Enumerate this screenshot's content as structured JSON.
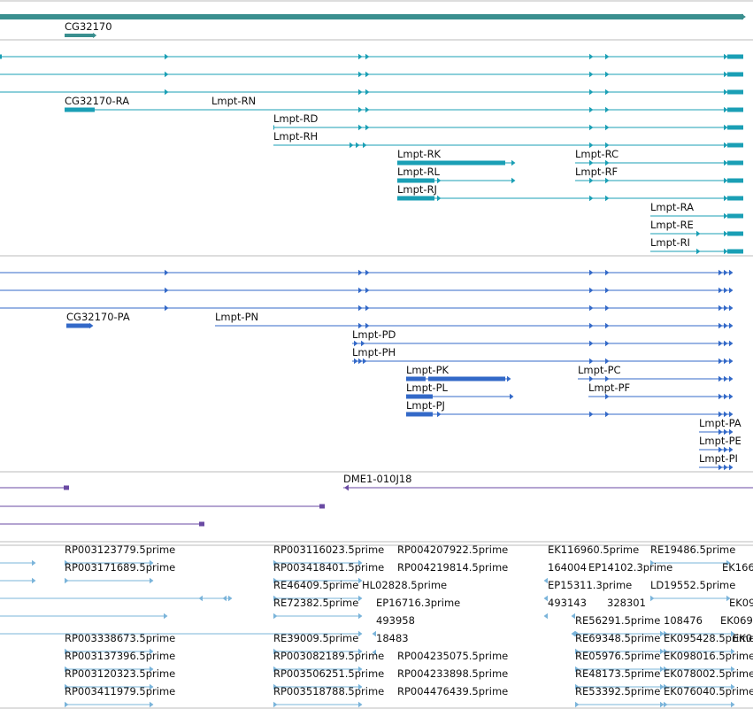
{
  "gene": {
    "label": "CG32170"
  },
  "rna_tracks": [
    {
      "label": "",
      "color": "teal"
    },
    {
      "label": "",
      "color": "teal"
    },
    {
      "label": "",
      "color": "teal"
    },
    {
      "label": "CG32170-RA",
      "color": "teal"
    },
    {
      "label": "Lmpt-RN",
      "color": "teal"
    },
    {
      "label": "Lmpt-RD",
      "color": "teal"
    },
    {
      "label": "Lmpt-RH",
      "color": "teal"
    },
    {
      "label": "Lmpt-RK",
      "color": "teal"
    },
    {
      "label": "Lmpt-RL",
      "color": "teal"
    },
    {
      "label": "Lmpt-RJ",
      "color": "teal"
    },
    {
      "label": "Lmpt-RC",
      "color": "teal"
    },
    {
      "label": "Lmpt-RF",
      "color": "teal"
    },
    {
      "label": "Lmpt-RA",
      "color": "teal"
    },
    {
      "label": "Lmpt-RE",
      "color": "teal"
    },
    {
      "label": "Lmpt-RI",
      "color": "teal"
    }
  ],
  "protein_tracks": [
    {
      "label": "CG32170-PA"
    },
    {
      "label": "Lmpt-PN"
    },
    {
      "label": "Lmpt-PD"
    },
    {
      "label": "Lmpt-PH"
    },
    {
      "label": "Lmpt-PK"
    },
    {
      "label": "Lmpt-PL"
    },
    {
      "label": "Lmpt-PJ"
    },
    {
      "label": "Lmpt-PC"
    },
    {
      "label": "Lmpt-PF"
    },
    {
      "label": "Lmpt-PA"
    },
    {
      "label": "Lmpt-PE"
    },
    {
      "label": "Lmpt-PI"
    }
  ],
  "clone_track": {
    "label": "DME1-010J18"
  },
  "est_labels": [
    "RP003123779.5prime",
    "RP003171689.5prime",
    "RP003338673.5prime",
    "RP003137396.5prime",
    "RP003120323.5prime",
    "RP003411979.5prime",
    "RP003116023.5prime",
    "RP003418401.5prime",
    "RE46409.5prime",
    "HL02828.5prime",
    "RE72382.5prime",
    "RE39009.5prime",
    "RP003082189.5prime",
    "RP003506251.5prime",
    "RP003518788.5prime",
    "RP004207922.5prime",
    "RP004219814.5prime",
    "EP16716.3prime",
    "493958",
    "18483",
    "RP004235075.5prime",
    "RP004233898.5prime",
    "RP004476439.5prime",
    "EK116960.5prime",
    "164004",
    "EP14102.3prime",
    "EP15311.3prime",
    "493143",
    "328301",
    "RE56291.5prime",
    "108476",
    "RE69348.5prime",
    "EK095428.5prime",
    "RE05976.5prime",
    "EK098016.5prime",
    "RE48173.5prime",
    "EK078002.5prime",
    "RE53392.5prime",
    "EK076040.5prime",
    "RE19486.5prime",
    "LD19552.5prime",
    "EK166",
    "EK09",
    "EK069",
    "EK06"
  ]
}
